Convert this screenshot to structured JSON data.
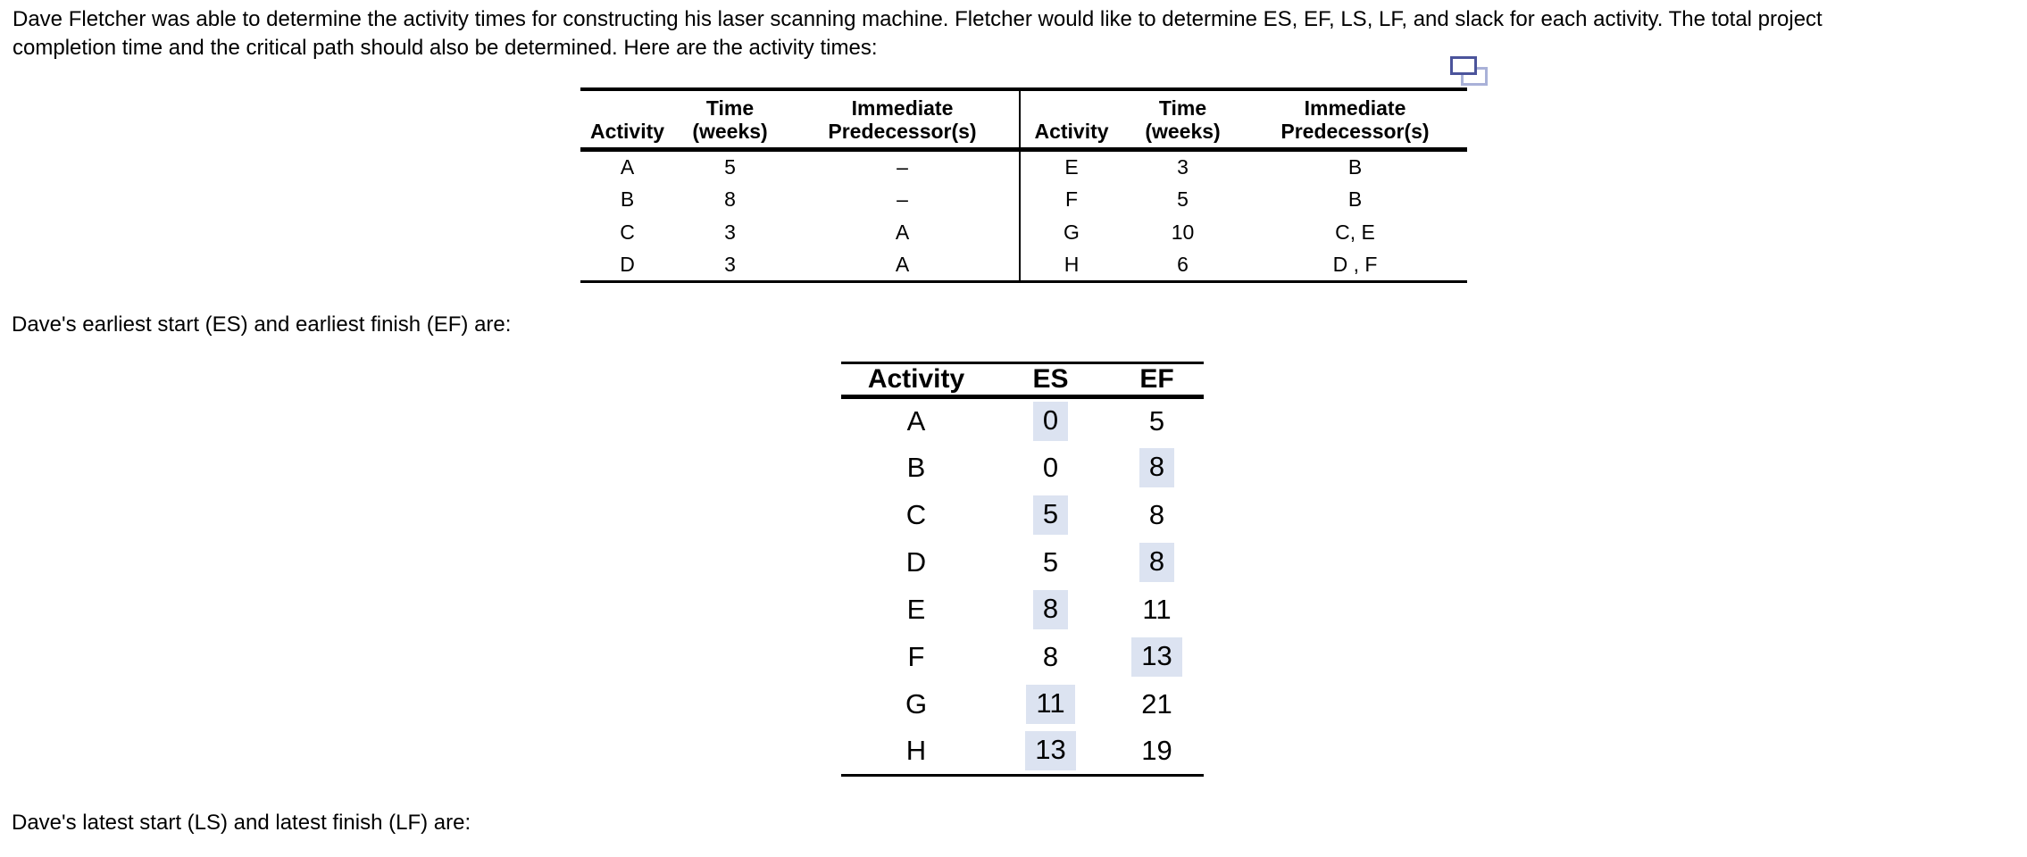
{
  "intro": {
    "line1": "Dave Fletcher was able to determine the activity times for constructing his laser scanning machine. Fletcher would like to determine ES, EF, LS, LF, and slack for each activity. The total project",
    "line2": "completion time and the critical path should also be determined. Here are the activity times:"
  },
  "colors": {
    "highlight": "#dce3f1",
    "icon_front": "#4b549b",
    "icon_back": "#a9b1d8"
  },
  "activity_table": {
    "headers": {
      "activity": "Activity",
      "time_line1": "Time",
      "time_line2": "(weeks)",
      "pred_line1": "Immediate",
      "pred_line2": "Predecessor(s)"
    },
    "left_rows": [
      {
        "activity": "A",
        "time": "5",
        "pred": "–"
      },
      {
        "activity": "B",
        "time": "8",
        "pred": "–"
      },
      {
        "activity": "C",
        "time": "3",
        "pred": "A"
      },
      {
        "activity": "D",
        "time": "3",
        "pred": "A"
      }
    ],
    "right_rows": [
      {
        "activity": "E",
        "time": "3",
        "pred": "B"
      },
      {
        "activity": "F",
        "time": "5",
        "pred": "B"
      },
      {
        "activity": "G",
        "time": "10",
        "pred": "C, E"
      },
      {
        "activity": "H",
        "time": "6",
        "pred": "D , F"
      }
    ]
  },
  "es_ef": {
    "label": "Dave's earliest start (ES) and earliest finish (EF) are:",
    "headers": {
      "activity": "Activity",
      "es": "ES",
      "ef": "EF"
    },
    "rows": [
      {
        "activity": "A",
        "es": "0",
        "es_hl": true,
        "ef": "5",
        "ef_hl": false
      },
      {
        "activity": "B",
        "es": "0",
        "es_hl": false,
        "ef": "8",
        "ef_hl": true
      },
      {
        "activity": "C",
        "es": "5",
        "es_hl": true,
        "ef": "8",
        "ef_hl": false
      },
      {
        "activity": "D",
        "es": "5",
        "es_hl": false,
        "ef": "8",
        "ef_hl": true
      },
      {
        "activity": "E",
        "es": "8",
        "es_hl": true,
        "ef": "11",
        "ef_hl": false
      },
      {
        "activity": "F",
        "es": "8",
        "es_hl": false,
        "ef": "13",
        "ef_hl": true
      },
      {
        "activity": "G",
        "es": "11",
        "es_hl": true,
        "ef": "21",
        "ef_hl": false
      },
      {
        "activity": "H",
        "es": "13",
        "es_hl": true,
        "ef": "19",
        "ef_hl": false
      }
    ]
  },
  "ls_lf": {
    "label": "Dave's latest start (LS) and latest finish (LF) are:"
  }
}
